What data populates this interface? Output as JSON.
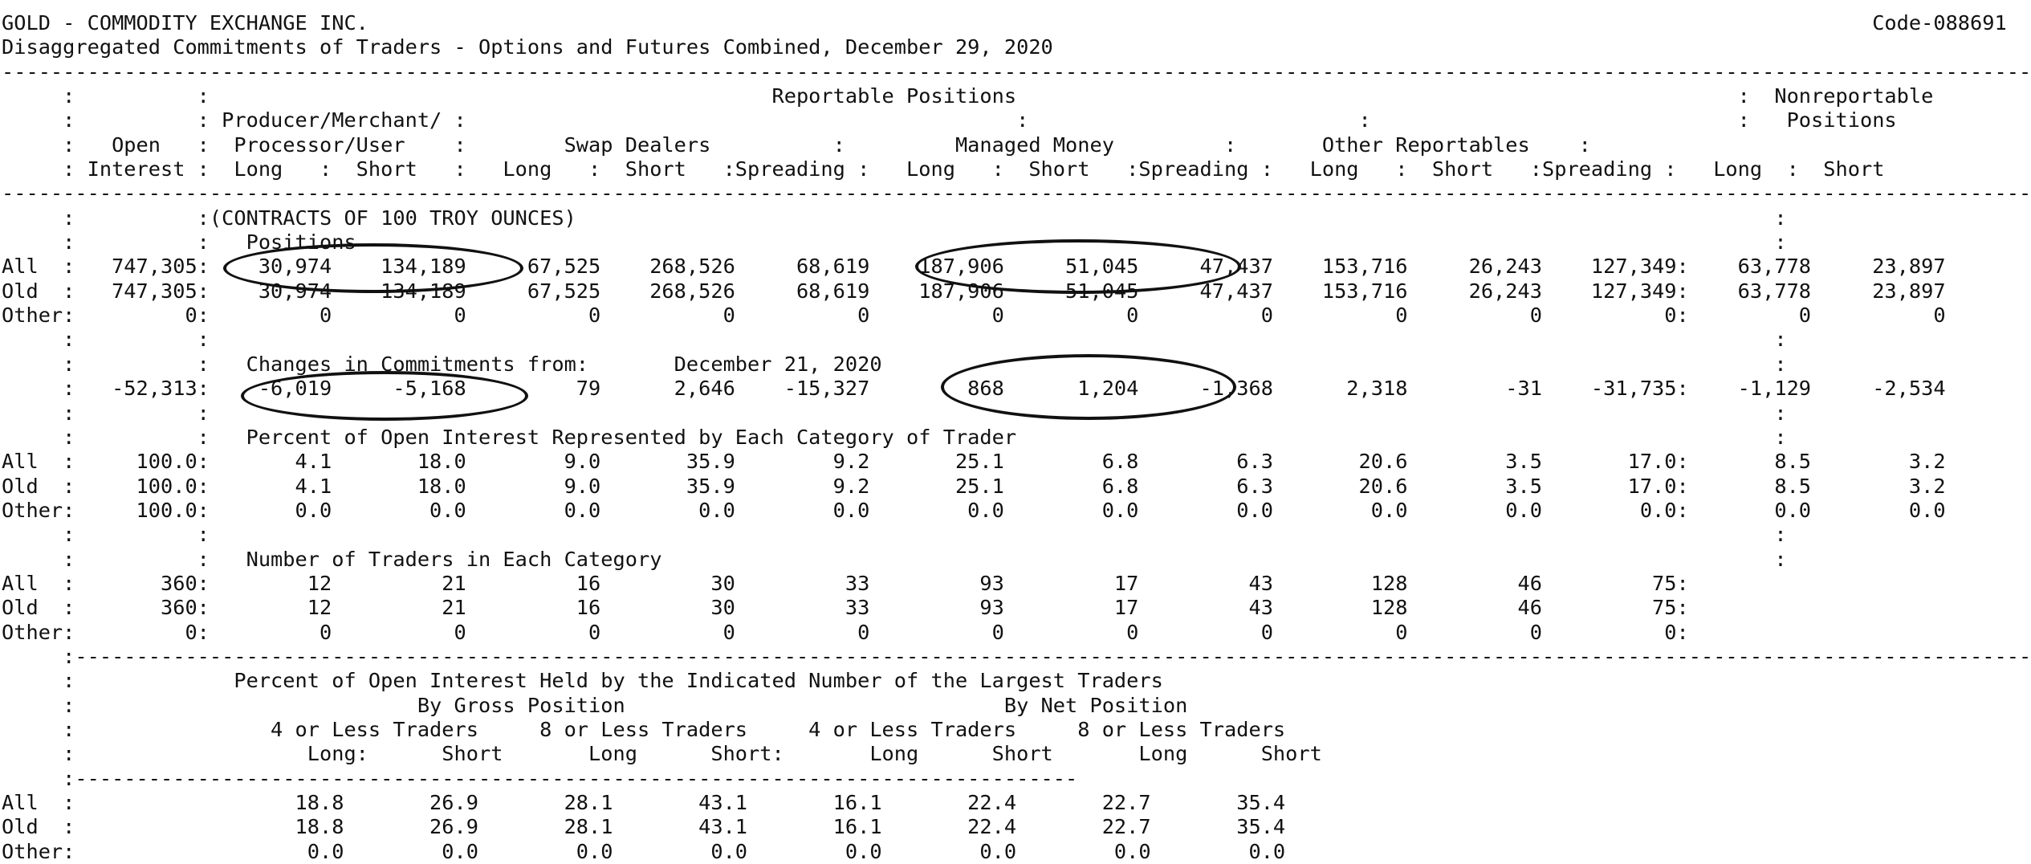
{
  "report": {
    "lines": [
      "GOLD - COMMODITY EXCHANGE INC.                                                                                                                           Code-088691",
      "Disaggregated Commitments of Traders - Options and Futures Combined, December 29, 2020",
      "-----------------------------------------------------------------------------------------------------------------------------------------------------------------------",
      "     :          :                                              Reportable Positions                                                           :  Nonreportable",
      "     :          : Producer/Merchant/ :                                             :                           :                              :   Positions",
      "     :   Open   :  Processor/User    :        Swap Dealers          :         Managed Money         :       Other Reportables    :",
      "     : Interest :  Long   :  Short   :   Long   :  Short   :Spreading :   Long   :  Short   :Spreading :   Long   :  Short   :Spreading :   Long  :  Short",
      "-----------------------------------------------------------------------------------------------------------------------------------------------------------------------",
      "     :          :(CONTRACTS OF 100 TROY OUNCES)                                                                                                  :",
      "     :          :   Positions                                                                                                                    :",
      "All  :   747,305:    30,974    134,189     67,525    268,526     68,619    187,906     51,045     47,437    153,716     26,243    127,349:    63,778     23,897",
      "Old  :   747,305:    30,974    134,189     67,525    268,526     68,619    187,906     51,045     47,437    153,716     26,243    127,349:    63,778     23,897",
      "Other:         0:         0          0          0          0          0          0          0          0          0          0          0:         0          0",
      "     :          :                                                                                                                                :",
      "     :          :   Changes in Commitments from:       December 21, 2020                                                                         :",
      "     :   -52,313:    -6,019     -5,168         79      2,646    -15,327        868      1,204     -1,368      2,318        -31    -31,735:    -1,129     -2,534",
      "     :          :                                                                                                                                :",
      "     :          :   Percent of Open Interest Represented by Each Category of Trader                                                              :",
      "All  :     100.0:       4.1       18.0        9.0       35.9        9.2       25.1        6.8        6.3       20.6        3.5       17.0:       8.5        3.2",
      "Old  :     100.0:       4.1       18.0        9.0       35.9        9.2       25.1        6.8        6.3       20.6        3.5       17.0:       8.5        3.2",
      "Other:     100.0:       0.0        0.0        0.0        0.0        0.0        0.0        0.0        0.0        0.0        0.0        0.0:       0.0        0.0",
      "     :          :                                                                                                                                :",
      "     :          :   Number of Traders in Each Category                                                                                           :",
      "All  :       360:        12         21         16         30         33         93         17         43        128         46         75:",
      "Old  :       360:        12         21         16         30         33         93         17         43        128         46         75:",
      "Other:         0:         0          0          0          0          0          0          0          0          0          0          0:",
      "     :-------------------------------------------------------------------------------------------------------------------------------------------------------------------",
      "     :             Percent of Open Interest Held by the Indicated Number of the Largest Traders",
      "     :                            By Gross Position                               By Net Position",
      "     :                4 or Less Traders     8 or Less Traders     4 or Less Traders     8 or Less Traders",
      "     :                   Long:      Short       Long      Short:       Long      Short       Long      Short",
      "     :----------------------------------------------------------------------------------",
      "All  :                  18.8       26.9       28.1       43.1       16.1       22.4       22.7       35.4",
      "Old  :                  18.8       26.9       28.1       43.1       16.1       22.4       22.7       35.4",
      "Other:                   0.0        0.0        0.0        0.0        0.0        0.0        0.0        0.0"
    ]
  },
  "annotations": {
    "stroke_color": "#111111"
  }
}
